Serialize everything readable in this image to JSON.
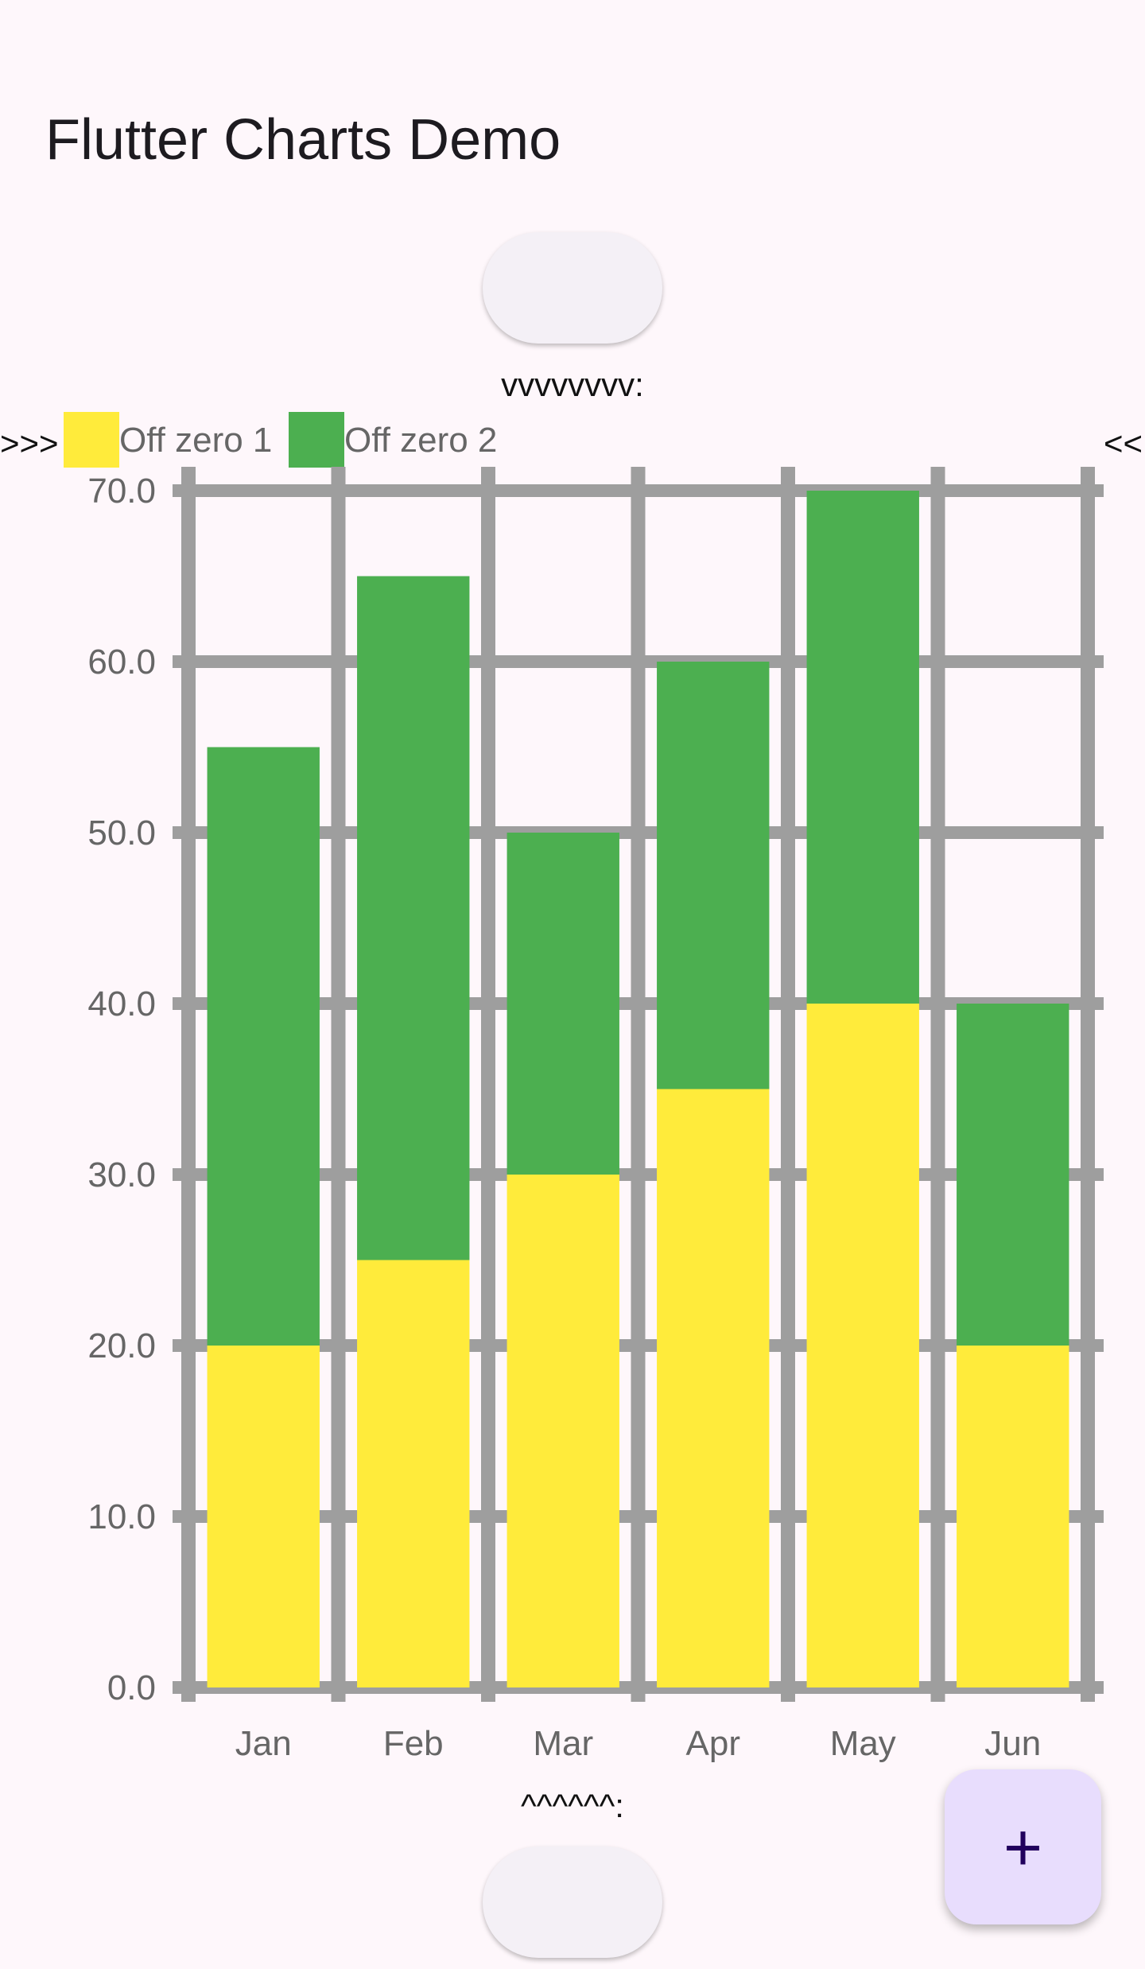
{
  "app_title": "Flutter Charts Demo",
  "markers": {
    "top": "vvvvvvvv:",
    "bottom": "^^^^^^:",
    "left": ">>>",
    "right": "<<"
  },
  "fab": {
    "icon": "plus-icon",
    "label": "+"
  },
  "colors": {
    "series1": "#ffeb3b",
    "series2": "#4caf50",
    "grid": "#9e9e9e",
    "label": "#666666"
  },
  "chart_data": {
    "type": "bar",
    "stacked": true,
    "categories": [
      "Jan",
      "Feb",
      "Mar",
      "Apr",
      "May",
      "Jun"
    ],
    "series": [
      {
        "name": "Off zero 1",
        "values": [
          20,
          25,
          30,
          35,
          40,
          20
        ],
        "color": "#ffeb3b"
      },
      {
        "name": "Off zero 2",
        "values": [
          35,
          40,
          20,
          25,
          30,
          20
        ],
        "color": "#4caf50"
      }
    ],
    "ylim": [
      0,
      70
    ],
    "yticks": [
      "0.0",
      "10.0",
      "20.0",
      "30.0",
      "40.0",
      "50.0",
      "60.0",
      "70.0"
    ],
    "grid": true,
    "legend_position": "top-left"
  }
}
